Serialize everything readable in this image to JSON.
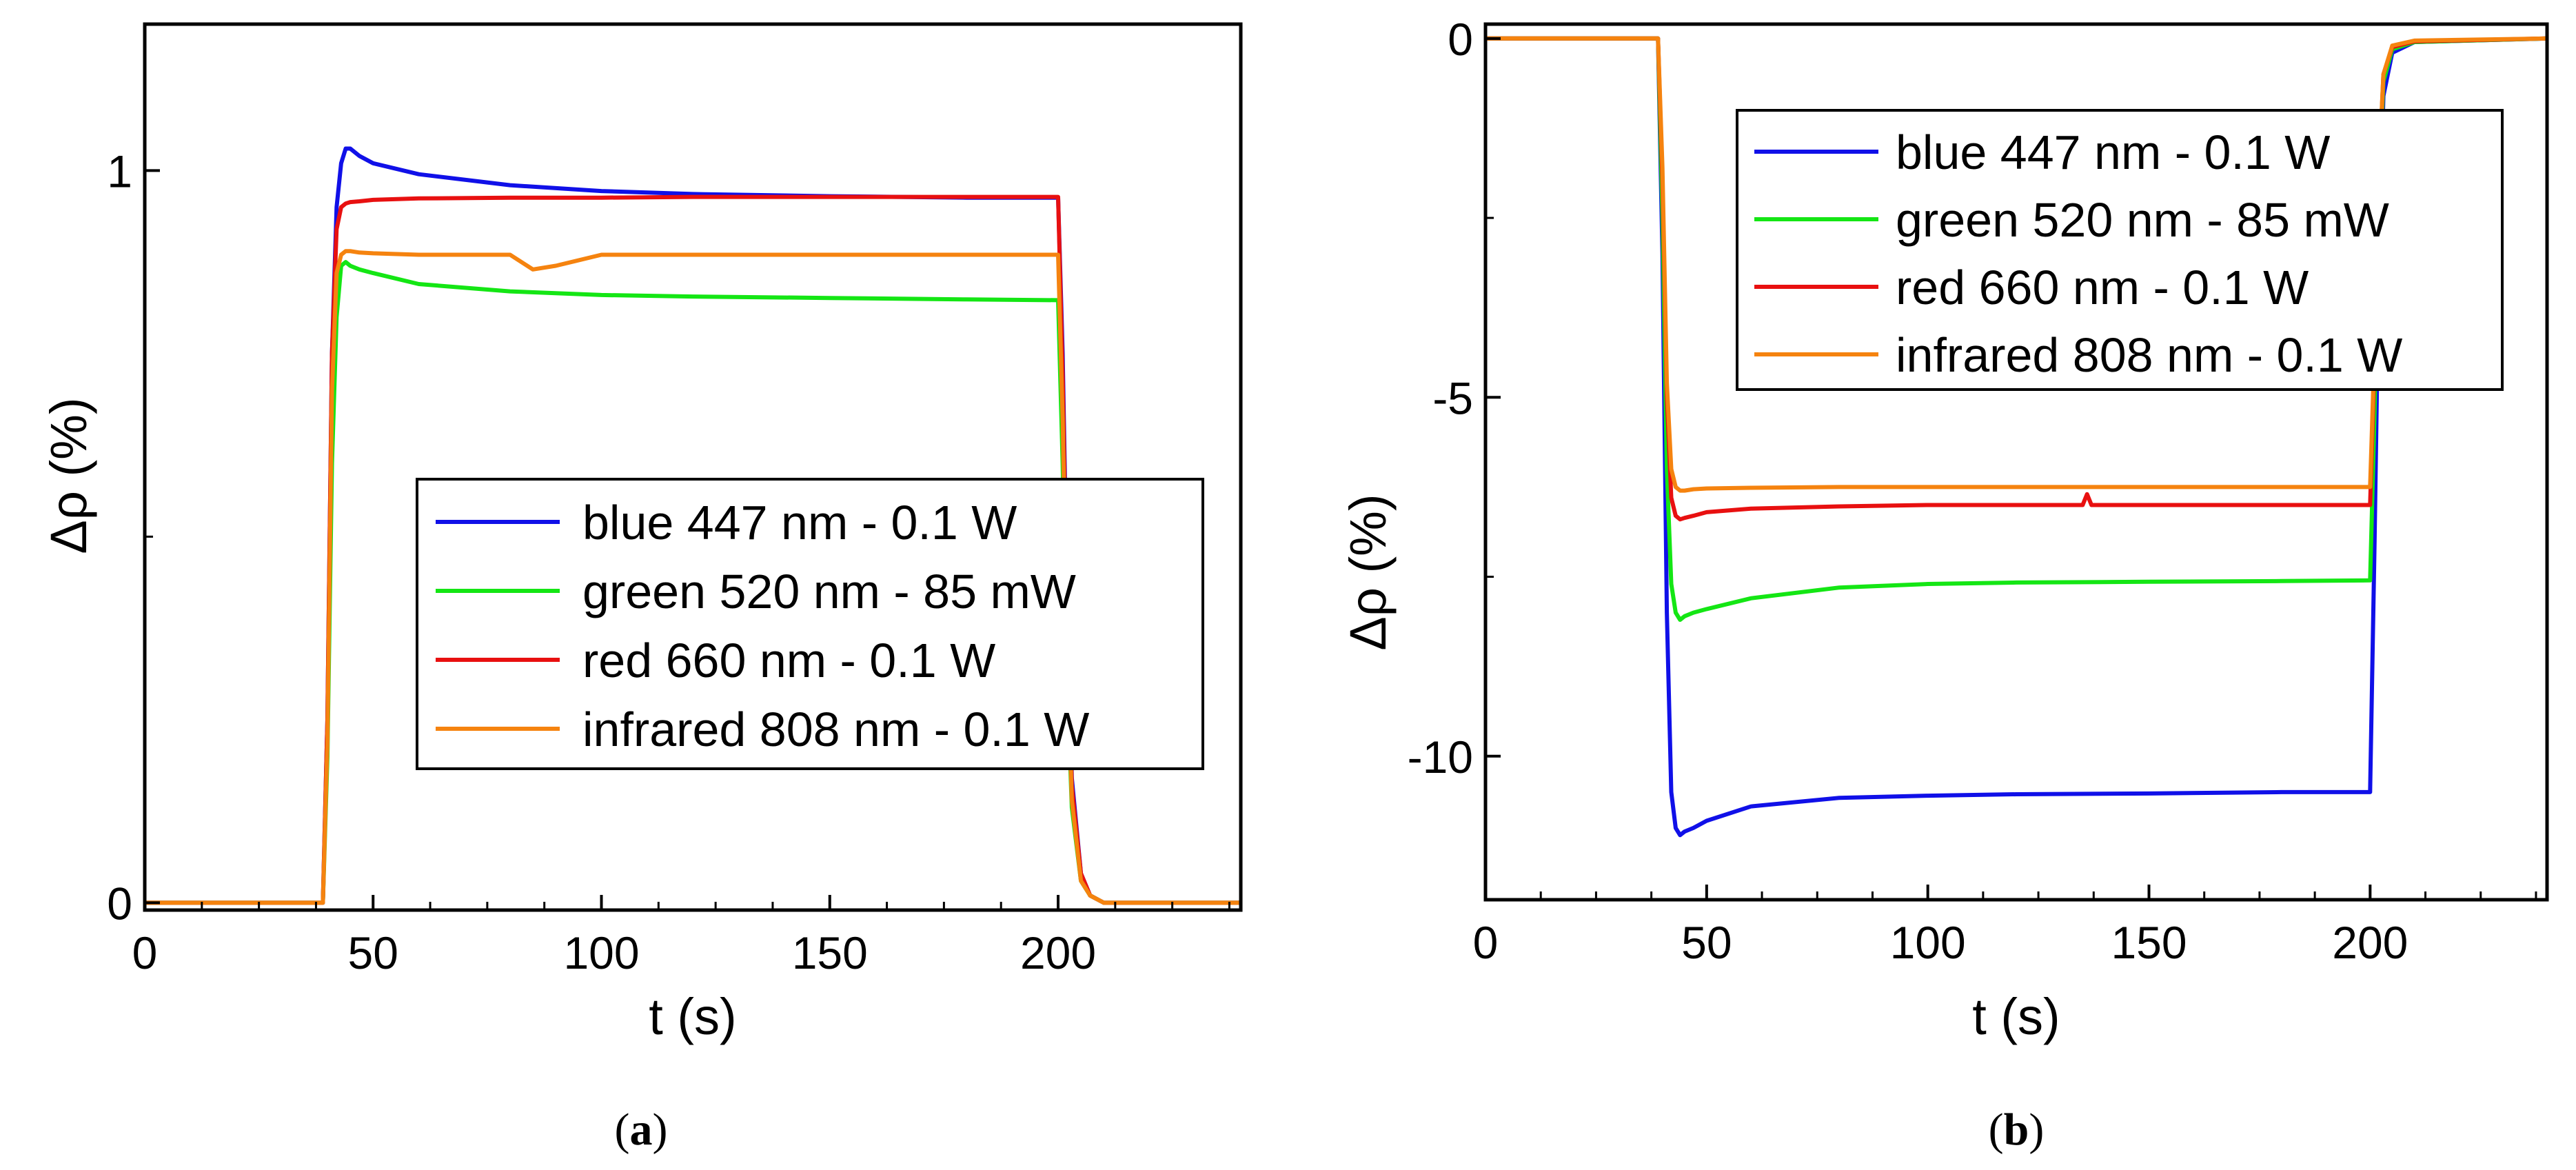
{
  "chart_data": [
    {
      "panel": "(a)",
      "caption_letter": "a",
      "type": "line",
      "xlabel": "t (s)",
      "ylabel": "Δρ (%)",
      "xlim": [
        0,
        240
      ],
      "ylim": [
        -0.01,
        1.2
      ],
      "xticks": [
        0,
        50,
        100,
        150,
        200
      ],
      "xtick_labels": [
        "0",
        "50",
        "100",
        "150",
        "200"
      ],
      "yticks": [
        0,
        1
      ],
      "ytick_labels": [
        "0",
        "1"
      ],
      "ytick_minor": [
        0.5
      ],
      "legend_position": "center-right",
      "series": [
        {
          "name": "blue 447 nm - 0.1 W",
          "color": "#1010e8",
          "x": [
            0,
            39,
            40,
            41,
            42,
            43,
            44,
            45,
            47,
            50,
            60,
            80,
            100,
            120,
            150,
            180,
            200,
            201,
            202,
            203,
            205,
            207,
            210,
            240
          ],
          "y": [
            0,
            0,
            0.25,
            0.75,
            0.95,
            1.01,
            1.03,
            1.03,
            1.02,
            1.01,
            0.995,
            0.98,
            0.972,
            0.968,
            0.965,
            0.963,
            0.963,
            0.75,
            0.4,
            0.17,
            0.04,
            0.01,
            0,
            0
          ]
        },
        {
          "name": "green 520 nm - 85 mW",
          "color": "#14e614",
          "x": [
            0,
            39,
            40,
            41,
            42,
            43,
            44,
            45,
            47,
            50,
            60,
            80,
            100,
            120,
            150,
            180,
            200,
            201,
            202,
            203,
            205,
            207,
            210,
            240
          ],
          "y": [
            0,
            0,
            0.2,
            0.6,
            0.8,
            0.87,
            0.875,
            0.87,
            0.865,
            0.86,
            0.845,
            0.835,
            0.83,
            0.828,
            0.826,
            0.824,
            0.823,
            0.6,
            0.3,
            0.13,
            0.03,
            0.01,
            0,
            0
          ]
        },
        {
          "name": "red 660 nm - 0.1 W",
          "color": "#e81010",
          "x": [
            0,
            39,
            40,
            41,
            42,
            43,
            44,
            45,
            47,
            50,
            60,
            80,
            100,
            120,
            150,
            180,
            200,
            201,
            202,
            203,
            205,
            207,
            210,
            240
          ],
          "y": [
            0,
            0,
            0.25,
            0.75,
            0.92,
            0.95,
            0.955,
            0.957,
            0.958,
            0.96,
            0.962,
            0.963,
            0.963,
            0.964,
            0.964,
            0.964,
            0.964,
            0.72,
            0.38,
            0.16,
            0.04,
            0.01,
            0,
            0
          ]
        },
        {
          "name": "infrared 808 nm - 0.1 W",
          "color": "#f5830f",
          "x": [
            0,
            39,
            40,
            41,
            42,
            43,
            44,
            45,
            47,
            50,
            60,
            80,
            85,
            90,
            100,
            120,
            150,
            180,
            200,
            201,
            202,
            203,
            205,
            207,
            210,
            240
          ],
          "y": [
            0,
            0,
            0.22,
            0.7,
            0.86,
            0.885,
            0.89,
            0.89,
            0.888,
            0.887,
            0.885,
            0.885,
            0.865,
            0.87,
            0.885,
            0.885,
            0.885,
            0.885,
            0.885,
            0.66,
            0.33,
            0.14,
            0.03,
            0.01,
            0,
            0
          ]
        }
      ]
    },
    {
      "panel": "(b)",
      "caption_letter": "b",
      "type": "line",
      "xlabel": "t (s)",
      "ylabel": "Δρ (%)",
      "xlim": [
        0,
        240
      ],
      "ylim": [
        -12,
        0.2
      ],
      "xticks": [
        0,
        50,
        100,
        150,
        200
      ],
      "xtick_labels": [
        "0",
        "50",
        "100",
        "150",
        "200"
      ],
      "yticks": [
        0,
        -5,
        -10
      ],
      "ytick_labels": [
        "0",
        "-5",
        "-10"
      ],
      "ytick_minor": [
        -2.5,
        -7.5
      ],
      "legend_position": "top-center",
      "series": [
        {
          "name": "blue 447 nm - 0.1 W",
          "color": "#1010e8",
          "x": [
            0,
            39,
            40,
            41,
            42,
            43,
            44,
            45,
            47,
            50,
            60,
            80,
            100,
            120,
            150,
            180,
            200,
            201,
            202,
            203,
            205,
            210,
            240
          ],
          "y": [
            0,
            0,
            -3,
            -8,
            -10.5,
            -11,
            -11.1,
            -11.05,
            -11,
            -10.9,
            -10.7,
            -10.58,
            -10.55,
            -10.53,
            -10.52,
            -10.5,
            -10.5,
            -7,
            -3,
            -0.8,
            -0.2,
            -0.05,
            0
          ]
        },
        {
          "name": "green 520 nm - 85 mW",
          "color": "#14e614",
          "x": [
            0,
            39,
            40,
            41,
            42,
            43,
            44,
            45,
            47,
            50,
            60,
            80,
            100,
            120,
            150,
            180,
            200,
            201,
            202,
            203,
            205,
            210,
            240
          ],
          "y": [
            0,
            0,
            -2.5,
            -6,
            -7.6,
            -8,
            -8.1,
            -8.05,
            -8,
            -7.95,
            -7.8,
            -7.65,
            -7.6,
            -7.58,
            -7.57,
            -7.56,
            -7.55,
            -5.2,
            -2.2,
            -0.6,
            -0.15,
            -0.05,
            0
          ]
        },
        {
          "name": "red 660 nm - 0.1 W",
          "color": "#e81010",
          "x": [
            0,
            39,
            40,
            41,
            42,
            43,
            44,
            45,
            47,
            50,
            60,
            80,
            100,
            120,
            135,
            136,
            137,
            150,
            180,
            200,
            201,
            202,
            203,
            205,
            210,
            240
          ],
          "y": [
            0,
            0,
            -2,
            -5,
            -6.4,
            -6.65,
            -6.7,
            -6.68,
            -6.65,
            -6.6,
            -6.55,
            -6.52,
            -6.5,
            -6.5,
            -6.5,
            -6.35,
            -6.5,
            -6.5,
            -6.5,
            -6.5,
            -4.5,
            -1.9,
            -0.5,
            -0.12,
            -0.04,
            0
          ]
        },
        {
          "name": "infrared 808 nm - 0.1 W",
          "color": "#f5830f",
          "x": [
            0,
            39,
            40,
            41,
            42,
            43,
            44,
            45,
            47,
            50,
            60,
            80,
            100,
            120,
            150,
            180,
            200,
            201,
            202,
            203,
            205,
            210,
            240
          ],
          "y": [
            0,
            0,
            -1.8,
            -4.8,
            -6,
            -6.25,
            -6.3,
            -6.3,
            -6.28,
            -6.27,
            -6.26,
            -6.25,
            -6.25,
            -6.25,
            -6.25,
            -6.25,
            -6.25,
            -4.3,
            -1.8,
            -0.5,
            -0.1,
            -0.03,
            0
          ]
        }
      ]
    }
  ]
}
